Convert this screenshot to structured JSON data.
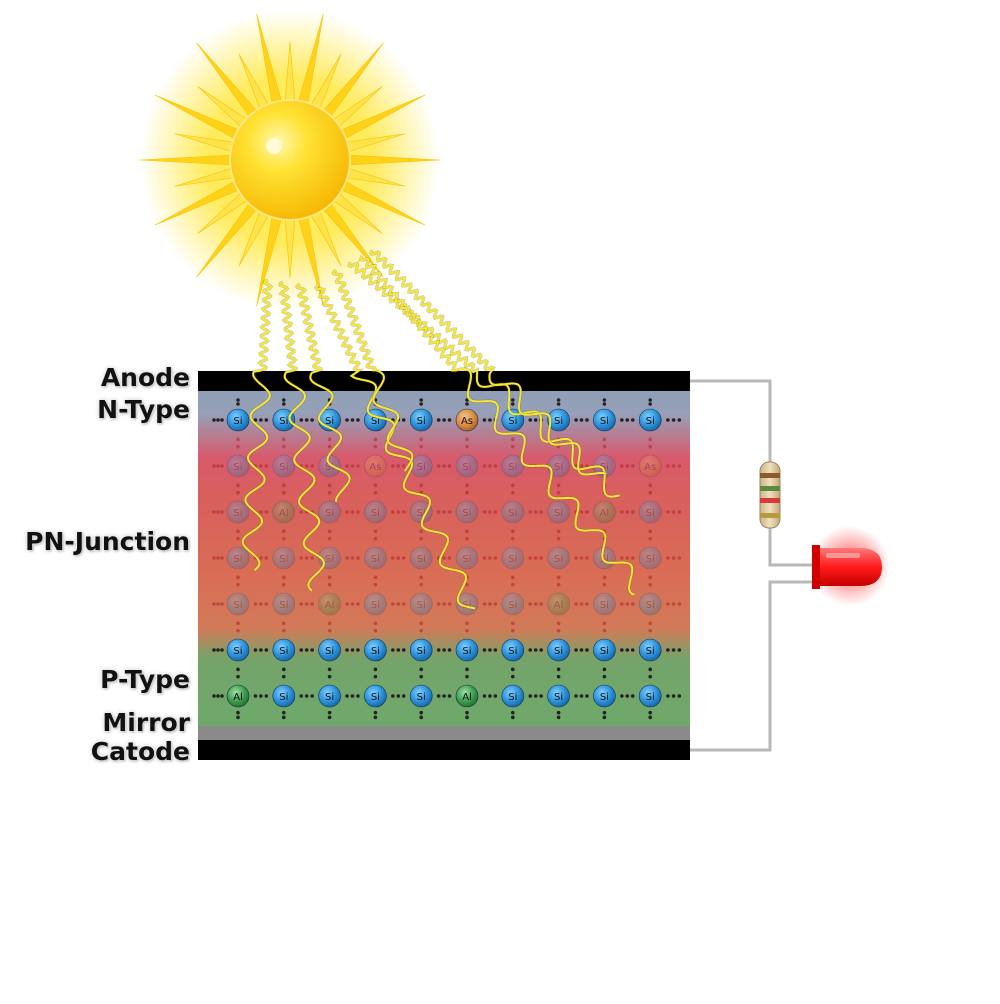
{
  "labels": {
    "anode": "Anode",
    "n_type": "N-Type",
    "pn_junction": "PN-Junction",
    "p_type": "P-Type",
    "mirror": "Mirror",
    "catode": "Catode"
  },
  "lattice_rows": [
    [
      "Si",
      "Si",
      "Si",
      "Si",
      "Si",
      "As",
      "Si",
      "Si",
      "Si",
      "Si"
    ],
    [
      "Si",
      "Si",
      "Si",
      "As",
      "Si",
      "Si",
      "Si",
      "Si",
      "Si",
      "As"
    ],
    [
      "Si",
      "Al",
      "Si",
      "Si",
      "Si",
      "Si",
      "Si",
      "Si",
      "Al",
      "Si"
    ],
    [
      "Si",
      "Si",
      "Si",
      "Si",
      "Si",
      "Si",
      "Si",
      "Si",
      "Si",
      "Si"
    ],
    [
      "Si",
      "Si",
      "Al",
      "Si",
      "Si",
      "Si",
      "Si",
      "Al",
      "Si",
      "Si"
    ],
    [
      "Si",
      "Si",
      "Si",
      "Si",
      "Si",
      "Si",
      "Si",
      "Si",
      "Si",
      "Si"
    ],
    [
      "Al",
      "Si",
      "Si",
      "Si",
      "Si",
      "Al",
      "Si",
      "Si",
      "Si",
      "Si"
    ]
  ],
  "colors": {
    "n_type_band": "#8f9fb5",
    "junction_band": "#d8655a",
    "p_type_band": "#6fa86a",
    "electrode": "#000000",
    "mirror": "#8a8a8a",
    "silicon_atom": "#2a8fd8",
    "arsenic_atom": "#d98a3c",
    "aluminum_atom": "#3c9a4e",
    "wire": "#b8b8b8",
    "led": "#ff2a2a",
    "photon": "#f2e23a",
    "sun": "#ffd400"
  },
  "icons": {
    "sun": "sun-icon",
    "resistor": "resistor-icon",
    "led": "led-icon"
  }
}
